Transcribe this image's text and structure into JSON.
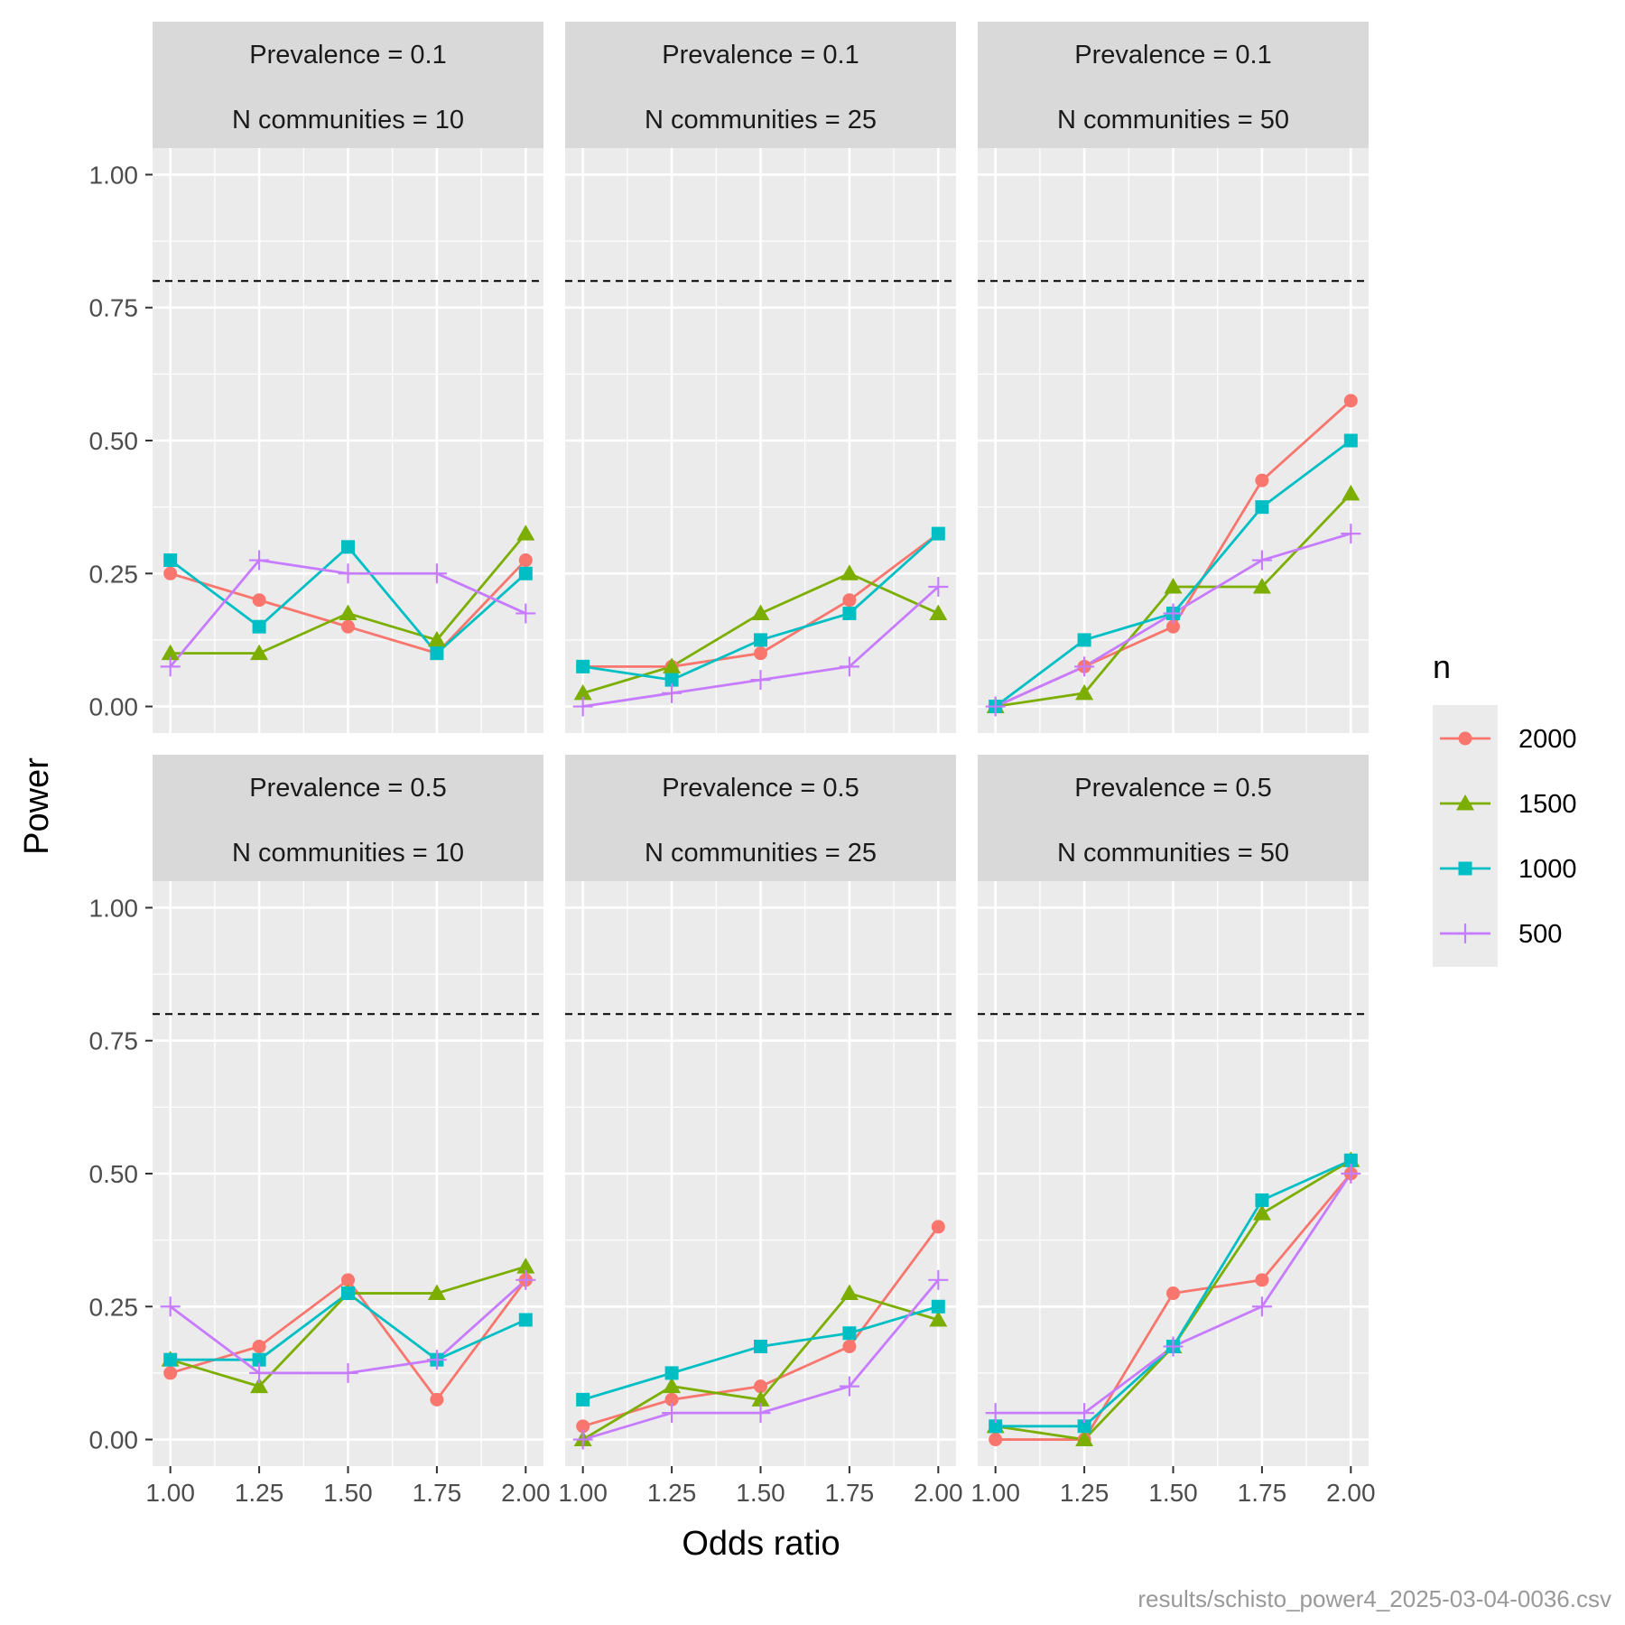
{
  "chart_data": {
    "type": "line",
    "xlabel": "Odds ratio",
    "ylabel": "Power",
    "x": [
      1.0,
      1.25,
      1.5,
      1.75,
      2.0
    ],
    "x_tick_labels": [
      "1.00",
      "1.25",
      "1.50",
      "1.75",
      "2.00"
    ],
    "y_tick_labels": [
      "0.00",
      "0.25",
      "0.50",
      "0.75",
      "1.00"
    ],
    "y_ticks": [
      0,
      0.25,
      0.5,
      0.75,
      1.0
    ],
    "xlim": [
      0.95,
      2.05
    ],
    "ylim": [
      -0.05,
      1.05
    ],
    "reference_line": 0.8,
    "grid": true,
    "legend": {
      "title": "n",
      "position": "right",
      "entries": [
        {
          "label": "2000",
          "color": "#F8766D",
          "shape": "circle"
        },
        {
          "label": "1500",
          "color": "#7CAE00",
          "shape": "triangle"
        },
        {
          "label": "1000",
          "color": "#00BFC4",
          "shape": "square"
        },
        {
          "label": "500",
          "color": "#C77CFF",
          "shape": "plus"
        }
      ]
    },
    "panels": [
      {
        "strip_top": "Prevalence = 0.1",
        "strip_bottom": "N communities = 10",
        "series": [
          {
            "name": "2000",
            "values": [
              0.25,
              0.2,
              0.15,
              0.1,
              0.275
            ]
          },
          {
            "name": "1500",
            "values": [
              0.1,
              0.1,
              0.175,
              0.125,
              0.325
            ]
          },
          {
            "name": "1000",
            "values": [
              0.275,
              0.15,
              0.3,
              0.1,
              0.25
            ]
          },
          {
            "name": "500",
            "values": [
              0.075,
              0.275,
              0.25,
              0.25,
              0.175
            ]
          }
        ]
      },
      {
        "strip_top": "Prevalence = 0.1",
        "strip_bottom": "N communities = 25",
        "series": [
          {
            "name": "2000",
            "values": [
              0.075,
              0.075,
              0.1,
              0.2,
              0.325
            ]
          },
          {
            "name": "1500",
            "values": [
              0.025,
              0.075,
              0.175,
              0.25,
              0.175
            ]
          },
          {
            "name": "1000",
            "values": [
              0.075,
              0.05,
              0.125,
              0.175,
              0.325
            ]
          },
          {
            "name": "500",
            "values": [
              0.0,
              0.025,
              0.05,
              0.075,
              0.225
            ]
          }
        ]
      },
      {
        "strip_top": "Prevalence = 0.1",
        "strip_bottom": "N communities = 50",
        "series": [
          {
            "name": "2000",
            "values": [
              0.0,
              0.075,
              0.15,
              0.425,
              0.575
            ]
          },
          {
            "name": "1500",
            "values": [
              0.0,
              0.025,
              0.225,
              0.225,
              0.4
            ]
          },
          {
            "name": "1000",
            "values": [
              0.0,
              0.125,
              0.175,
              0.375,
              0.5
            ]
          },
          {
            "name": "500",
            "values": [
              0.0,
              0.075,
              0.175,
              0.275,
              0.325
            ]
          }
        ]
      },
      {
        "strip_top": "Prevalence = 0.5",
        "strip_bottom": "N communities = 10",
        "series": [
          {
            "name": "2000",
            "values": [
              0.125,
              0.175,
              0.3,
              0.075,
              0.3
            ]
          },
          {
            "name": "1500",
            "values": [
              0.15,
              0.1,
              0.275,
              0.275,
              0.325
            ]
          },
          {
            "name": "1000",
            "values": [
              0.15,
              0.15,
              0.275,
              0.15,
              0.225
            ]
          },
          {
            "name": "500",
            "values": [
              0.25,
              0.125,
              0.125,
              0.15,
              0.3
            ]
          }
        ]
      },
      {
        "strip_top": "Prevalence = 0.5",
        "strip_bottom": "N communities = 25",
        "series": [
          {
            "name": "2000",
            "values": [
              0.025,
              0.075,
              0.1,
              0.175,
              0.4
            ]
          },
          {
            "name": "1500",
            "values": [
              0.0,
              0.1,
              0.075,
              0.275,
              0.225
            ]
          },
          {
            "name": "1000",
            "values": [
              0.075,
              0.125,
              0.175,
              0.2,
              0.25
            ]
          },
          {
            "name": "500",
            "values": [
              0.0,
              0.05,
              0.05,
              0.1,
              0.3
            ]
          }
        ]
      },
      {
        "strip_top": "Prevalence = 0.5",
        "strip_bottom": "N communities = 50",
        "series": [
          {
            "name": "2000",
            "values": [
              0.0,
              0.0,
              0.275,
              0.3,
              0.5
            ]
          },
          {
            "name": "1500",
            "values": [
              0.025,
              0.0,
              0.175,
              0.425,
              0.525
            ]
          },
          {
            "name": "1000",
            "values": [
              0.025,
              0.025,
              0.175,
              0.45,
              0.525
            ]
          },
          {
            "name": "500",
            "values": [
              0.05,
              0.05,
              0.175,
              0.25,
              0.5
            ]
          }
        ]
      }
    ],
    "caption": "results/schisto_power4_2025-03-04-0036.csv"
  }
}
